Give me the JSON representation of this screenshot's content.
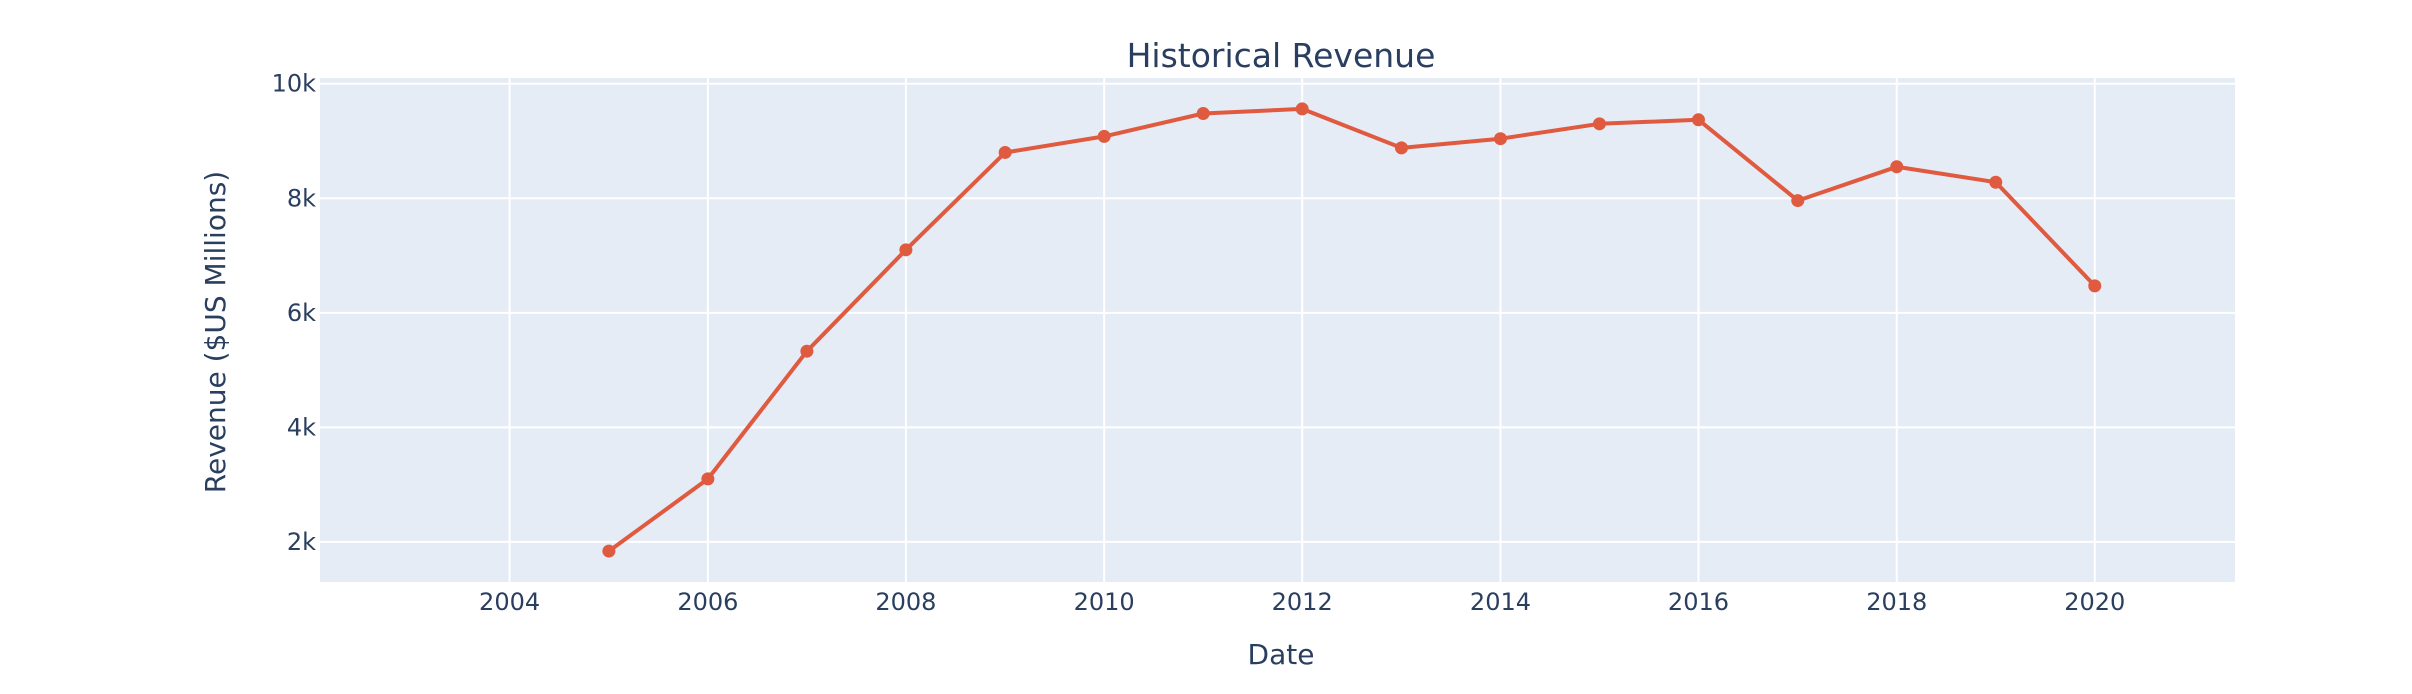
{
  "chart_data": {
    "type": "line",
    "title": "Historical Revenue",
    "xlabel": "Date",
    "ylabel": "Revenue ($US Millions)",
    "x_axis_type": "date",
    "xlim": [
      "2002-02-01",
      "2021-06-01"
    ],
    "ylim": [
      1300,
      10100
    ],
    "x_ticks": [
      "2004",
      "2006",
      "2008",
      "2010",
      "2012",
      "2014",
      "2016",
      "2018",
      "2020"
    ],
    "y_ticks": [
      "2k",
      "4k",
      "6k",
      "8k",
      "10k"
    ],
    "y_tick_values": [
      2000,
      4000,
      6000,
      8000,
      10000
    ],
    "grid": true,
    "legend": "none",
    "colors": {
      "line": "#e05a3f",
      "plot_bg": "#e5ecf6",
      "grid": "#ffffff",
      "text": "#2a3f5f"
    },
    "series": [
      {
        "x": [
          "2005-01-01",
          "2006-01-01",
          "2007-01-01",
          "2008-01-01",
          "2009-01-01",
          "2010-01-01",
          "2011-01-01",
          "2012-01-01",
          "2013-01-01",
          "2014-01-01",
          "2015-01-01",
          "2016-01-01",
          "2017-01-01",
          "2018-01-01",
          "2019-01-01",
          "2020-01-01"
        ],
        "y": [
          1840,
          3100,
          5330,
          7100,
          8800,
          9080,
          9480,
          9560,
          8880,
          9040,
          9300,
          9370,
          7960,
          8550,
          8280,
          6470
        ]
      }
    ]
  }
}
